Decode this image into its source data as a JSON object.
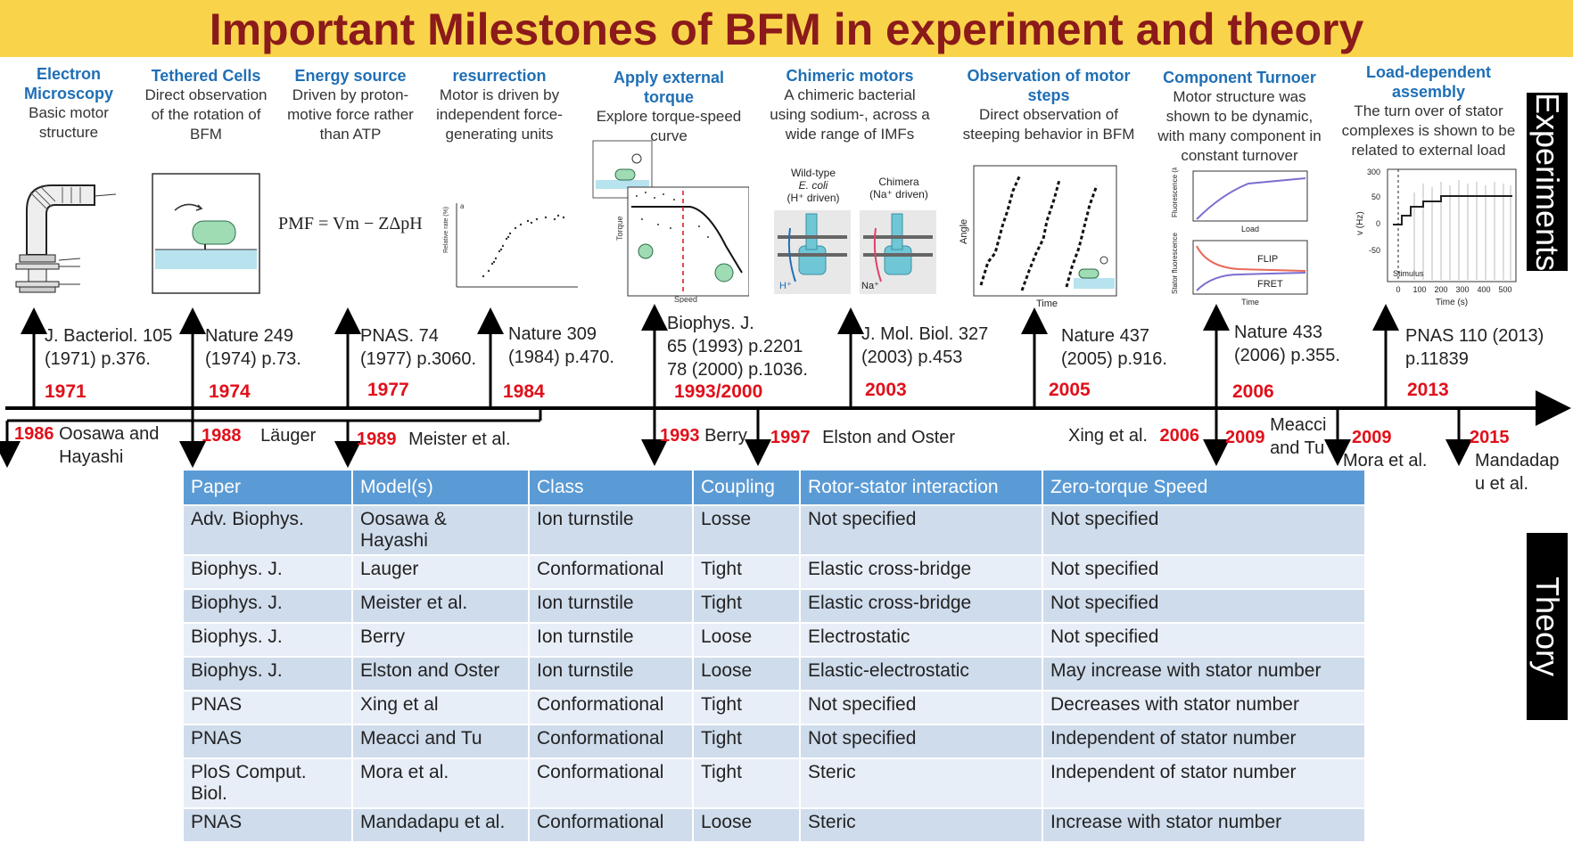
{
  "title": "Important Milestones of BFM in experiment and theory",
  "side_labels": {
    "experiments": "Experiments",
    "theory": "Theory"
  },
  "colors": {
    "banner": "#f9d44a",
    "title": "#8b1a1a",
    "heading": "#1f6fb5",
    "year": "#e0101a",
    "table_header": "#5b9bd5"
  },
  "experiments": [
    {
      "heading": "Electron Microscopy",
      "desc": "Basic motor structure"
    },
    {
      "heading": "Tethered Cells",
      "desc": "Direct observation of the rotation of BFM"
    },
    {
      "heading": "Energy source",
      "desc": "Driven by proton-motive force rather than ATP"
    },
    {
      "heading": "resurrection",
      "desc": "Motor is driven by independent force-generating units"
    },
    {
      "heading": "Apply external torque",
      "desc": "Explore torque-speed curve"
    },
    {
      "heading": "Chimeric motors",
      "desc": "A chimeric bacterial using sodium-, across a wide range of IMFs"
    },
    {
      "heading": "Observation of motor steps",
      "desc": "Direct observation of steeping behavior in BFM"
    },
    {
      "heading": "Component Turnoer",
      "desc": "Motor structure was shown to be dynamic, with many component in constant turnover"
    },
    {
      "heading": "Load-dependent assembly",
      "desc": "The turn over of stator complexes is shown to be related to external load"
    }
  ],
  "figure_text": {
    "pmf": "PMF = Vm − ZΔpH",
    "torque": "Torque",
    "speed": "Speed",
    "wild_type": "Wild-type",
    "ecoli": "E. coli",
    "h_driven": "(H⁺ driven)",
    "chimera": "Chimera",
    "na_driven": "(Na⁺ driven)",
    "h_label": "H⁺",
    "na_label": "Na⁺",
    "angle": "Angle",
    "time": "Time",
    "fluor_stators": "Fluorescence (# of stators)",
    "load": "Load",
    "stator_fluor": "Stator fluorescence",
    "flip": "FLIP",
    "fret": "FRET",
    "v_hz": "v (Hz)",
    "time_s": "Time (s)",
    "stimulus": "Stimulus",
    "relation_rate": "Relative rate (%)",
    "b_label": "a",
    "y_ticks": [
      "300",
      "50",
      "0",
      "-50"
    ],
    "x_ticks": [
      "0",
      "100",
      "200",
      "300",
      "400",
      "500"
    ]
  },
  "refs_above": [
    {
      "ref": "J. Bacteriol. 105\n(1971) p.376.",
      "year": "1971"
    },
    {
      "ref": "Nature 249\n(1974) p.73.",
      "year": "1974"
    },
    {
      "ref": "PNAS. 74\n(1977) p.3060.",
      "year": "1977"
    },
    {
      "ref": "Nature 309\n(1984) p.470.",
      "year": "1984"
    },
    {
      "ref": "Biophys. J.\n65 (1993) p.2201\n78 (2000) p.1036.",
      "year": "1993/2000"
    },
    {
      "ref": "J. Mol. Biol. 327\n(2003) p.453",
      "year": "2003"
    },
    {
      "ref": "Nature 437\n(2005) p.916.",
      "year": "2005"
    },
    {
      "ref": "Nature 433\n(2006) p.355.",
      "year": "2006"
    },
    {
      "ref": "PNAS 110 (2013)\np.11839",
      "year": "2013"
    }
  ],
  "below": [
    {
      "year": "1986",
      "text": "Oosawa and\nHayashi"
    },
    {
      "year": "1988",
      "text": "Läuger"
    },
    {
      "year": "1989",
      "text": "Meister et al."
    },
    {
      "year": "1993",
      "text": "Berry"
    },
    {
      "year": "1997",
      "text": "Elston and Oster"
    },
    {
      "year": "2006",
      "text": "Xing et al."
    },
    {
      "year": "2009",
      "text": "Meacci\nand Tu"
    },
    {
      "year": "2009",
      "text": "Mora et al."
    },
    {
      "year": "2015",
      "text": "Mandadap\nu et al."
    }
  ],
  "table": {
    "headers": [
      "Paper",
      "Model(s)",
      "Class",
      "Coupling",
      "Rotor-stator interaction",
      "Zero-torque Speed"
    ],
    "rows": [
      [
        "Adv. Biophys.",
        "Oosawa &\nHayashi",
        "Ion turnstile",
        "Losse",
        "Not specified",
        "Not specified"
      ],
      [
        "Biophys. J.",
        "Lauger",
        "Conformational",
        "Tight",
        "Elastic cross-bridge",
        "Not specified"
      ],
      [
        "Biophys. J.",
        "Meister et al.",
        "Ion turnstile",
        "Tight",
        "Elastic cross-bridge",
        "Not specified"
      ],
      [
        "Biophys. J.",
        "Berry",
        "Ion turnstile",
        "Loose",
        "Electrostatic",
        "Not specified"
      ],
      [
        "Biophys. J.",
        "Elston and Oster",
        "Ion turnstile",
        "Loose",
        "Elastic-electrostatic",
        "May increase with stator number"
      ],
      [
        "PNAS",
        "Xing et al",
        "Conformational",
        "Tight",
        "Not specified",
        "Decreases with stator number"
      ],
      [
        "PNAS",
        "Meacci and Tu",
        "Conformational",
        "Tight",
        "Not specified",
        "Independent of stator number"
      ],
      [
        "PloS Comput. Biol.",
        "Mora et al.",
        "Conformational",
        "Tight",
        "Steric",
        "Independent of stator number"
      ],
      [
        "PNAS",
        "Mandadapu et al.",
        "Conformational",
        "Loose",
        "Steric",
        "Increase with stator number"
      ]
    ]
  }
}
